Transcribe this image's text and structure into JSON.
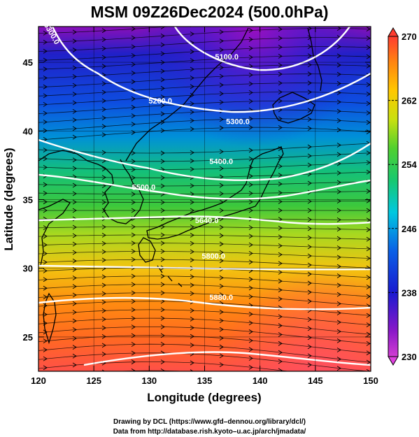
{
  "title": "MSM 09Z26Dec2024 (500.0hPa)",
  "chart_data": {
    "type": "map",
    "xlabel": "Longitude (degrees)",
    "ylabel": "Latitude  (degrees)",
    "xlim": [
      120,
      150
    ],
    "ylim": [
      22.5,
      47.6
    ],
    "xticks": [
      "120",
      "125",
      "130",
      "135",
      "140",
      "145",
      "150"
    ],
    "yticks": [
      "25",
      "30",
      "35",
      "40",
      "45"
    ],
    "shading_field": "temperature",
    "colorbar": {
      "min": 230,
      "max": 270,
      "tick_labels": [
        "270",
        "262",
        "254",
        "246",
        "238",
        "230"
      ],
      "colors": [
        "#ff4040",
        "#ff8000",
        "#ffd400",
        "#a0e000",
        "#20c020",
        "#00c8c8",
        "#0070e0",
        "#1010c0",
        "#8000c0",
        "#ff40ff"
      ]
    },
    "contours": [
      {
        "label": "5100.0",
        "label_lon": 137.0,
        "label_lat": 45.2
      },
      {
        "label": "5200.0",
        "label_lon": 131.0,
        "label_lat": 42.0
      },
      {
        "label": "5300.0",
        "label_lon": 121.0,
        "label_lat": 47.0
      },
      {
        "label": "5300.0",
        "label_lon": 138.0,
        "label_lat": 40.5
      },
      {
        "label": "5400.0",
        "label_lon": 136.5,
        "label_lat": 37.6
      },
      {
        "label": "5500.0",
        "label_lon": 129.5,
        "label_lat": 35.7
      },
      {
        "label": "5640.0",
        "label_lon": 135.2,
        "label_lat": 33.3
      },
      {
        "label": "5800.0",
        "label_lon": 135.8,
        "label_lat": 30.7
      },
      {
        "label": "5880.0",
        "label_lon": 136.5,
        "label_lat": 27.7
      }
    ]
  },
  "credits": [
    "Drawing by DCL (https://www.gfd–dennou.org/library/dcl/)",
    "Data from http://database.rish.kyoto–u.ac.jp/arch/jmadata/"
  ]
}
